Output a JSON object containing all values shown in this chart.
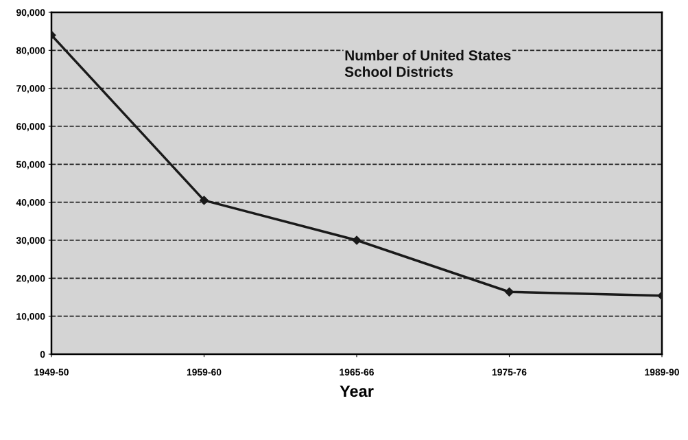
{
  "chart_data": {
    "type": "line",
    "title": "Number of United States\nSchool Districts",
    "xlabel": "Year",
    "categories": [
      "1949-50",
      "1959-60",
      "1965-66",
      "1975-76",
      "1989-90"
    ],
    "series": [
      {
        "color": "#1a1a1a",
        "values": [
          84000,
          40500,
          30000,
          16400,
          15400
        ]
      }
    ],
    "ylim": [
      0,
      90000
    ],
    "yticks": [
      {
        "value": 0,
        "label": "0"
      },
      {
        "value": 10000,
        "label": "10,000"
      },
      {
        "value": 20000,
        "label": "20,000"
      },
      {
        "value": 30000,
        "label": "30,000"
      },
      {
        "value": 40000,
        "label": "40,000"
      },
      {
        "value": 50000,
        "label": "50,000"
      },
      {
        "value": 60000,
        "label": "60,000"
      },
      {
        "value": 70000,
        "label": "70,000"
      },
      {
        "value": 80000,
        "label": "80,000"
      },
      {
        "value": 90000,
        "label": "90,000"
      }
    ],
    "grid": "y",
    "marker": "diamond",
    "line_style": "solid",
    "legend": false
  }
}
